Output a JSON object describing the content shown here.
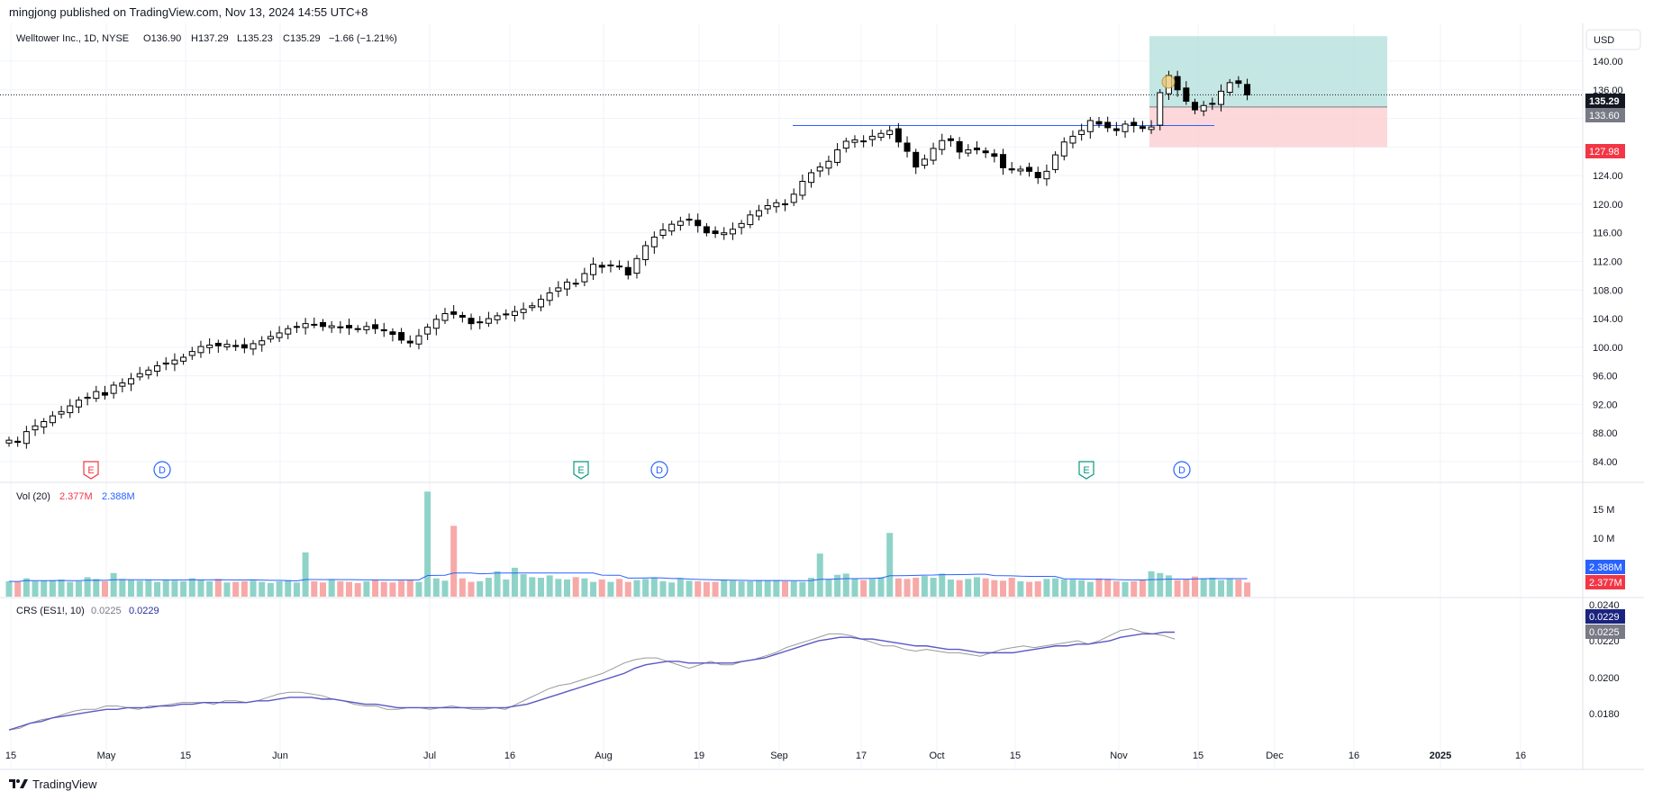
{
  "header": {
    "publisher_line": "mingjong published on TradingView.com, Nov 13, 2024 14:55 UTC+8"
  },
  "legend": {
    "symbol_line": "Welltower Inc., 1D, NYSE",
    "open_label": "O",
    "open_value": "136.90",
    "high_label": "H",
    "high_value": "137.29",
    "low_label": "L",
    "low_value": "135.23",
    "close_label": "C",
    "close_value": "135.29",
    "change_value": "−1.66",
    "change_pct": "(−1.21%)"
  },
  "currency_button": "USD",
  "price_tags": {
    "last": "135.29",
    "entry": "133.60",
    "stop": "127.98"
  },
  "volume_pane": {
    "title": "Vol (20)",
    "vol_value": "2.377M",
    "ma_value": "2.388M",
    "axis_ticks": [
      "15 M",
      "10 M"
    ],
    "tag_ma": "2.388M",
    "tag_vol": "2.377M"
  },
  "crs_pane": {
    "title": "CRS (ES1!, 10)",
    "value1": "0.0225",
    "value2": "0.0229",
    "axis_ticks": [
      "0.0240",
      "0.0220",
      "0.0200",
      "0.0180"
    ],
    "tag1": "0.0229",
    "tag2": "0.0225"
  },
  "events": [
    {
      "type": "E",
      "color": "#f23645"
    },
    {
      "type": "D",
      "color": "#2962ff"
    },
    {
      "type": "E",
      "color": "#089981"
    },
    {
      "type": "D",
      "color": "#2962ff"
    },
    {
      "type": "E",
      "color": "#089981"
    },
    {
      "type": "D",
      "color": "#2962ff"
    }
  ],
  "footer": {
    "brand": "TradingView"
  },
  "colors": {
    "up_candle_body": "#ffffff",
    "down_candle_body": "#000000",
    "volume_up": "#8fd3c8",
    "volume_down": "#f7a9a7",
    "ma_line": "#2962ff",
    "crs_line": "#999999",
    "crs_ma": "#5b58c4",
    "profit_zone": "#b2dfdb",
    "loss_zone": "#fccbcd",
    "hline": "#2962ff"
  },
  "chart_data": [
    {
      "type": "candlestick",
      "title": "Welltower Inc., 1D, NYSE",
      "x_ticks": [
        "15",
        "May",
        "15",
        "Jun",
        "Jul",
        "16",
        "Aug",
        "19",
        "Sep",
        "17",
        "Oct",
        "15",
        "Nov",
        "15",
        "Dec",
        "16",
        "2025",
        "16"
      ],
      "y_ticks": [
        "140.00",
        "136.00",
        "132.00",
        "128.00",
        "124.00",
        "120.00",
        "116.00",
        "112.00",
        "108.00",
        "104.00",
        "100.00",
        "96.00",
        "92.00",
        "88.00",
        "84.00"
      ],
      "ylim": [
        82,
        145
      ],
      "series_close": [
        87.0,
        86.7,
        88.2,
        89.0,
        89.6,
        90.4,
        91.0,
        91.8,
        92.6,
        93.0,
        93.8,
        93.3,
        94.7,
        95.0,
        95.6,
        96.3,
        96.8,
        97.4,
        97.8,
        98.2,
        98.6,
        99.4,
        100.1,
        100.3,
        100.2,
        100.4,
        100.1,
        99.9,
        100.5,
        100.9,
        101.5,
        102.0,
        102.6,
        102.9,
        103.3,
        103.2,
        102.9,
        103.0,
        102.8,
        102.7,
        102.6,
        102.9,
        102.6,
        102.3,
        101.8,
        101.0,
        100.6,
        101.6,
        102.8,
        103.9,
        104.7,
        104.6,
        104.2,
        103.3,
        103.5,
        104.0,
        104.4,
        104.6,
        105.0,
        105.3,
        105.8,
        106.7,
        107.6,
        108.3,
        109.1,
        108.9,
        110.3,
        111.6,
        111.2,
        111.5,
        111.3,
        110.1,
        112.4,
        114.2,
        115.4,
        116.4,
        117.2,
        117.6,
        117.9,
        117.0,
        116.0,
        115.9,
        116.0,
        116.5,
        117.3,
        118.5,
        119.1,
        119.8,
        120.2,
        120.0,
        121.4,
        123.2,
        124.4,
        125.2,
        126.0,
        127.6,
        128.8,
        129.0,
        128.8,
        129.5,
        129.9,
        130.3,
        128.7,
        127.4,
        125.2,
        126.3,
        127.8,
        128.9,
        128.9,
        127.3,
        127.6,
        127.6,
        127.2,
        126.7,
        125.1,
        124.8,
        124.9,
        124.6,
        123.7,
        124.6,
        126.9,
        128.7,
        129.5,
        130.3,
        131.7,
        131.2,
        130.7,
        130.3,
        131.2,
        131.0,
        130.6,
        130.8,
        135.6,
        138.0,
        136.0,
        134.4,
        133.2,
        133.8,
        134.1,
        135.8,
        137.0,
        136.9,
        135.29
      ],
      "lines": [
        {
          "name": "resistance",
          "value": 131.0
        },
        {
          "name": "last",
          "value": 135.29
        }
      ],
      "position": {
        "target": 143.5,
        "entry": 133.6,
        "stop": 127.98
      }
    },
    {
      "type": "bar",
      "title": "Vol (20)",
      "ylim": [
        0,
        18
      ],
      "y_ticks": [
        "15 M",
        "10 M"
      ],
      "values": [
        2.6,
        2.5,
        3.1,
        2.6,
        2.7,
        2.8,
        2.9,
        2.5,
        2.6,
        3.3,
        3.0,
        2.6,
        4.0,
        3.0,
        2.8,
        2.7,
        2.9,
        2.5,
        2.8,
        2.7,
        2.6,
        3.1,
        2.9,
        2.6,
        3.0,
        2.4,
        2.5,
        2.6,
        2.7,
        2.5,
        2.3,
        2.6,
        2.8,
        2.4,
        7.5,
        2.6,
        2.4,
        2.9,
        2.6,
        2.5,
        2.3,
        2.6,
        2.9,
        2.5,
        2.4,
        2.7,
        2.8,
        2.5,
        17.8,
        3.1,
        2.7,
        12.0,
        3.1,
        2.5,
        2.6,
        3.2,
        4.3,
        2.9,
        4.9,
        3.8,
        3.3,
        3.2,
        3.6,
        3.0,
        2.9,
        3.3,
        3.1,
        2.5,
        2.9,
        2.5,
        3.0,
        2.5,
        2.8,
        3.0,
        3.2,
        2.6,
        2.4,
        3.1,
        2.7,
        2.6,
        2.5,
        2.5,
        2.9,
        2.7,
        2.6,
        2.6,
        2.8,
        2.7,
        2.8,
        2.6,
        2.6,
        2.5,
        3.2,
        7.3,
        2.9,
        3.7,
        3.9,
        3.1,
        2.8,
        3.0,
        3.3,
        10.8,
        3.1,
        3.0,
        3.2,
        3.5,
        3.2,
        3.9,
        2.9,
        2.8,
        3.0,
        3.3,
        3.1,
        2.8,
        2.7,
        3.2,
        2.6,
        2.5,
        2.6,
        3.0,
        3.1,
        2.9,
        2.9,
        2.8,
        2.5,
        3.1,
        3.0,
        2.6,
        2.5,
        2.6,
        2.8,
        4.3,
        4.0,
        3.6,
        2.8,
        3.0,
        3.4,
        3.1,
        3.2,
        2.8,
        3.1,
        2.9,
        2.4
      ],
      "ma_value": 2.388
    },
    {
      "type": "line",
      "title": "CRS (ES1!, 10)",
      "ylim": [
        0.017,
        0.0245
      ],
      "y_ticks": [
        "0.0240",
        "0.0220",
        "0.0200",
        "0.0180"
      ],
      "series": [
        {
          "name": "CRS",
          "values": [
            0.0172,
            0.0173,
            0.0176,
            0.0178,
            0.0179,
            0.0181,
            0.0183,
            0.0184,
            0.0184,
            0.0186,
            0.0186,
            0.0185,
            0.0184,
            0.0186,
            0.0186,
            0.0187,
            0.0188,
            0.0188,
            0.0188,
            0.0187,
            0.0189,
            0.0189,
            0.0188,
            0.0189,
            0.0191,
            0.0193,
            0.0194,
            0.0194,
            0.0193,
            0.0192,
            0.019,
            0.0189,
            0.0187,
            0.0186,
            0.0186,
            0.0184,
            0.0184,
            0.0185,
            0.0185,
            0.0184,
            0.0185,
            0.0186,
            0.0185,
            0.0184,
            0.0184,
            0.0185,
            0.0184,
            0.0187,
            0.019,
            0.0193,
            0.0196,
            0.0198,
            0.0199,
            0.0201,
            0.0203,
            0.0205,
            0.0208,
            0.0211,
            0.0213,
            0.0214,
            0.0214,
            0.0212,
            0.021,
            0.0208,
            0.021,
            0.0212,
            0.021,
            0.021,
            0.0212,
            0.0213,
            0.0215,
            0.0217,
            0.022,
            0.0222,
            0.0224,
            0.0226,
            0.0228,
            0.0228,
            0.0227,
            0.0225,
            0.0223,
            0.0221,
            0.0221,
            0.0219,
            0.0218,
            0.0219,
            0.0218,
            0.0217,
            0.0217,
            0.0216,
            0.0215,
            0.0217,
            0.0219,
            0.022,
            0.0221,
            0.022,
            0.0221,
            0.0222,
            0.0223,
            0.0224,
            0.0222,
            0.0224,
            0.0227,
            0.023,
            0.0231,
            0.0229,
            0.0228,
            0.0227,
            0.0225
          ]
        },
        {
          "name": "MA",
          "values": [
            0.0172,
            0.0174,
            0.0176,
            0.0177,
            0.0179,
            0.018,
            0.0181,
            0.0182,
            0.0183,
            0.0184,
            0.0184,
            0.0185,
            0.0185,
            0.0185,
            0.0186,
            0.0186,
            0.0187,
            0.0187,
            0.0188,
            0.0188,
            0.0188,
            0.0188,
            0.0188,
            0.0189,
            0.0189,
            0.019,
            0.0191,
            0.0191,
            0.0191,
            0.019,
            0.019,
            0.0189,
            0.0188,
            0.0187,
            0.0187,
            0.0186,
            0.0185,
            0.0185,
            0.0185,
            0.0185,
            0.0185,
            0.0185,
            0.0185,
            0.0185,
            0.0185,
            0.0185,
            0.0185,
            0.0186,
            0.0187,
            0.0189,
            0.0191,
            0.0193,
            0.0195,
            0.0197,
            0.0199,
            0.0201,
            0.0203,
            0.0205,
            0.0208,
            0.021,
            0.0211,
            0.0212,
            0.0212,
            0.0211,
            0.0211,
            0.0211,
            0.0211,
            0.0211,
            0.0212,
            0.0213,
            0.0214,
            0.0216,
            0.0218,
            0.022,
            0.0222,
            0.0224,
            0.0225,
            0.0226,
            0.0226,
            0.0225,
            0.0225,
            0.0224,
            0.0223,
            0.0222,
            0.0221,
            0.0221,
            0.022,
            0.0219,
            0.0219,
            0.0218,
            0.0217,
            0.0217,
            0.0217,
            0.0217,
            0.0218,
            0.0219,
            0.022,
            0.0221,
            0.0221,
            0.0222,
            0.0222,
            0.0223,
            0.0224,
            0.0226,
            0.0227,
            0.0228,
            0.0228,
            0.0229,
            0.0229
          ]
        }
      ]
    }
  ]
}
